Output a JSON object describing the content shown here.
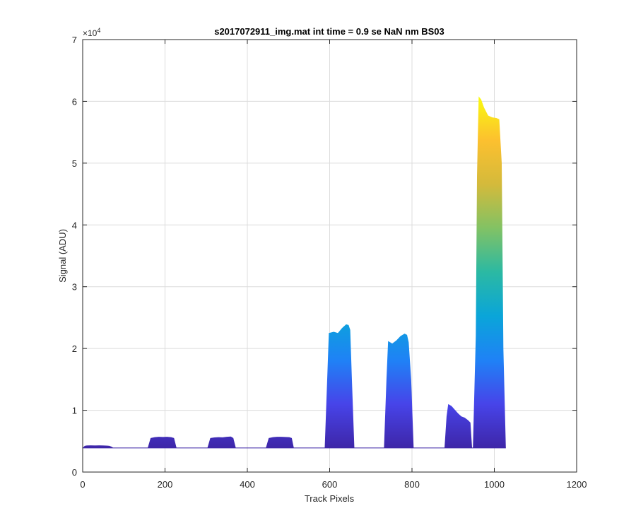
{
  "chart_data": {
    "type": "area",
    "title": "s2017072911_img.mat int time = 0.9 se  NaN nm BS03",
    "xlabel": "Track Pixels",
    "ylabel": "Signal (ADU)",
    "y_exponent_label": "×10",
    "y_exponent_power": "4",
    "xlim": [
      0,
      1200
    ],
    "ylim": [
      0,
      70000
    ],
    "x_ticks": [
      0,
      200,
      400,
      600,
      800,
      1000,
      1200
    ],
    "x_tick_labels": [
      "0",
      "200",
      "400",
      "600",
      "800",
      "1000",
      "1200"
    ],
    "y_ticks": [
      0,
      10000,
      20000,
      30000,
      40000,
      50000,
      60000,
      70000
    ],
    "y_tick_labels": [
      "0",
      "1",
      "2",
      "3",
      "4",
      "5",
      "6",
      "7"
    ],
    "grid": true,
    "baseline": 3900,
    "colormap": "parula",
    "colormap_colors": [
      "#3e26a8",
      "#4744e9",
      "#1f82f6",
      "#0aa5d9",
      "#2bb9a3",
      "#82c264",
      "#d4ba3b",
      "#fcc02f",
      "#f9fb0e"
    ],
    "segments": [
      {
        "x": [
          0,
          5,
          10,
          20,
          30,
          40,
          50,
          60,
          65,
          70,
          75
        ],
        "y": [
          3900,
          4250,
          4300,
          4320,
          4300,
          4320,
          4300,
          4280,
          4250,
          4100,
          3900
        ]
      },
      {
        "x": [
          158,
          165,
          175,
          185,
          195,
          205,
          215,
          222,
          228
        ],
        "y": [
          3900,
          5500,
          5650,
          5700,
          5680,
          5700,
          5650,
          5500,
          3900
        ]
      },
      {
        "x": [
          303,
          310,
          320,
          330,
          340,
          350,
          360,
          366,
          372
        ],
        "y": [
          3900,
          5500,
          5600,
          5650,
          5620,
          5700,
          5750,
          5500,
          3900
        ]
      },
      {
        "x": [
          445,
          452,
          462,
          472,
          482,
          492,
          502,
          508,
          513
        ],
        "y": [
          3900,
          5500,
          5650,
          5700,
          5700,
          5680,
          5650,
          5500,
          3900
        ]
      },
      {
        "x": [
          588,
          594,
          598,
          610,
          620,
          630,
          640,
          646,
          650,
          654,
          660
        ],
        "y": [
          3900,
          15000,
          22500,
          22700,
          22500,
          23300,
          23900,
          23800,
          23000,
          15000,
          3900
        ]
      },
      {
        "x": [
          732,
          738,
          742,
          752,
          762,
          772,
          782,
          788,
          792,
          798,
          804
        ],
        "y": [
          3900,
          15000,
          21200,
          20800,
          21300,
          22000,
          22400,
          22200,
          21000,
          15000,
          3900
        ]
      },
      {
        "x": [
          879,
          884,
          888,
          896,
          904,
          912,
          920,
          928,
          936,
          942,
          946
        ],
        "y": [
          3900,
          9000,
          11000,
          10700,
          10100,
          9500,
          9000,
          8800,
          8400,
          8000,
          3900
        ]
      },
      {
        "x": [
          948,
          955,
          958,
          962,
          968,
          975,
          985,
          995,
          1005,
          1012,
          1018,
          1022,
          1028
        ],
        "y": [
          3900,
          22000,
          48000,
          60800,
          60300,
          59000,
          57700,
          57400,
          57300,
          57100,
          50000,
          20000,
          3900
        ]
      }
    ]
  }
}
